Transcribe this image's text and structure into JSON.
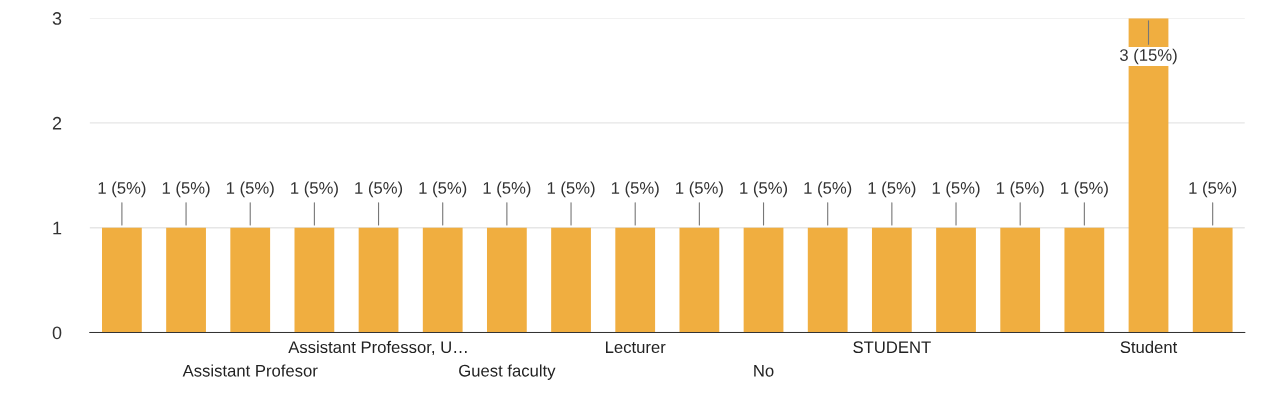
{
  "chart_data": {
    "type": "bar",
    "categories": [
      null,
      null,
      "Assistant Profesor",
      null,
      "Assistant Professor, U…",
      null,
      "Guest faculty",
      null,
      "Lecturer",
      null,
      "No",
      null,
      "STUDENT",
      null,
      null,
      null,
      "Student",
      null
    ],
    "values": [
      1,
      1,
      1,
      1,
      1,
      1,
      1,
      1,
      1,
      1,
      1,
      1,
      1,
      1,
      1,
      1,
      3,
      1
    ],
    "value_labels": [
      "1 (5%)",
      "1 (5%)",
      "1 (5%)",
      "1 (5%)",
      "1 (5%)",
      "1 (5%)",
      "1 (5%)",
      "1 (5%)",
      "1 (5%)",
      "1 (5%)",
      "1 (5%)",
      "1 (5%)",
      "1 (5%)",
      "1 (5%)",
      "1 (5%)",
      "1 (5%)",
      "3 (15%)",
      "1 (5%)"
    ],
    "color": "#f0ae40",
    "ylim": [
      0,
      3
    ],
    "yticks": [
      0,
      1,
      2,
      3
    ],
    "grid": "y"
  }
}
